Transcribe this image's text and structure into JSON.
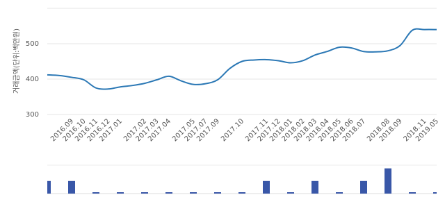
{
  "chart_data": [
    {
      "type": "line",
      "y_label": "거래금액(단위:백만원)",
      "categories": [
        null,
        null,
        "2016.09",
        "2016.10",
        "2016.11",
        "2016.12",
        "2017.01",
        null,
        "2017.02",
        "2017.03",
        "2017.04",
        null,
        "2017.05",
        "2017.07",
        "2017.09",
        null,
        "2017.10",
        null,
        "2017.11",
        "2017.12",
        "2018.01",
        "2018.02",
        "2018.03",
        "2018.04",
        "2018.05",
        "2018.06",
        "2018.07",
        null,
        "2018.08",
        "2018.09",
        null,
        "2018.11",
        "2019.05"
      ],
      "values": [
        412,
        410,
        405,
        398,
        375,
        372,
        378,
        382,
        388,
        398,
        408,
        395,
        385,
        387,
        398,
        430,
        450,
        454,
        455,
        452,
        446,
        452,
        468,
        478,
        490,
        488,
        478,
        477,
        480,
        495,
        538,
        540,
        540
      ],
      "color": "#2b78b5",
      "ylim": [
        300,
        600
      ],
      "yticks": [
        300,
        400,
        500
      ],
      "grid": true
    },
    {
      "type": "bar",
      "values": [
        1,
        null,
        1,
        null,
        0,
        null,
        0,
        null,
        0,
        null,
        0,
        null,
        0,
        null,
        0,
        null,
        0,
        null,
        1,
        null,
        0,
        null,
        1,
        null,
        0,
        null,
        1,
        null,
        2,
        null,
        0,
        null,
        0
      ],
      "color": "#3957a8",
      "ylim": [
        0,
        2.2
      ]
    }
  ]
}
